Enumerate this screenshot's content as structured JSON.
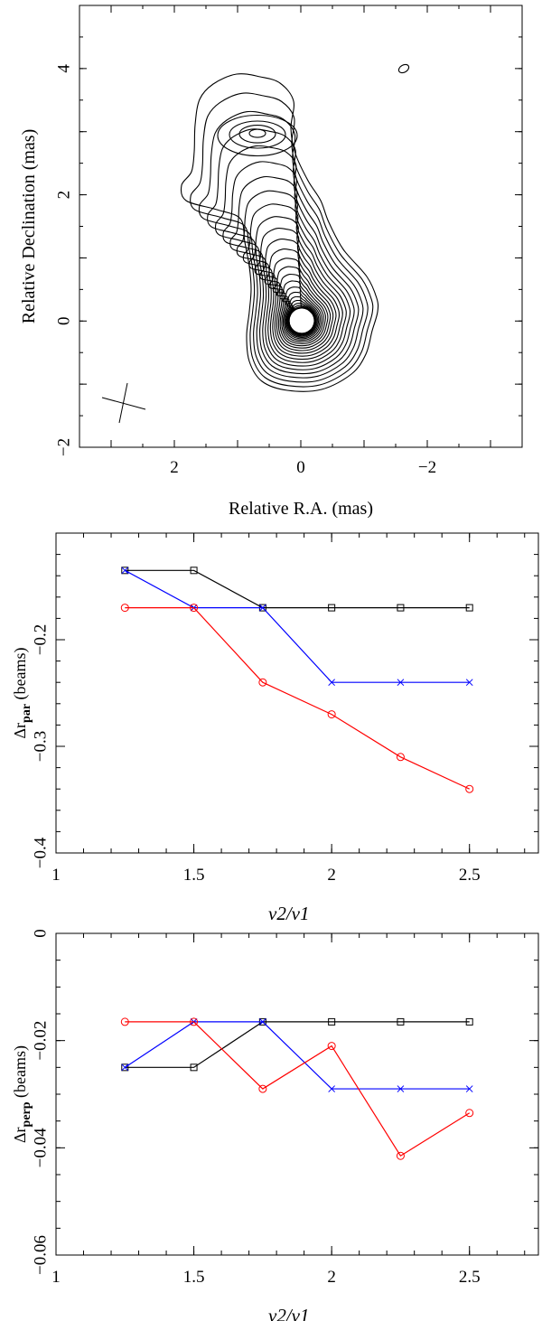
{
  "chart_data": [
    {
      "type": "contour",
      "title": "",
      "xlabel": "Relative R.A. (mas)",
      "ylabel": "Relative Declination (mas)",
      "xlim": [
        3.5,
        -3.5
      ],
      "ylim": [
        -2,
        5
      ],
      "xticks": [
        "2",
        "0",
        "−2"
      ],
      "yticks": [
        "−2",
        "0",
        "2",
        "4"
      ],
      "features": [
        "compact core at (0, 0)",
        "jet extending north to ~(0.8, 3.8)",
        "secondary peak near (0.7, 3.0)",
        "isolated component near (−1.6, 4.0)",
        "beam cross at lower-left"
      ]
    },
    {
      "type": "line",
      "xlabel": "ν2/ν1",
      "ylabel_main": "Δr",
      "ylabel_sub": "par",
      "ylabel_units": "(beams)",
      "xlim": [
        1,
        2.75
      ],
      "ylim": [
        -0.4,
        -0.1
      ],
      "xticks": [
        "1",
        "1.5",
        "2",
        "2.5"
      ],
      "yticks": [
        "−0.4",
        "−0.3",
        "−0.2"
      ],
      "x": [
        1.25,
        1.5,
        1.75,
        2.0,
        2.25,
        2.5
      ],
      "series": [
        {
          "name": "black",
          "color": "#000000",
          "marker": "square",
          "values": [
            -0.135,
            -0.135,
            -0.17,
            -0.17,
            -0.17,
            -0.17
          ]
        },
        {
          "name": "blue",
          "color": "#0000ff",
          "marker": "x",
          "values": [
            -0.135,
            -0.17,
            -0.17,
            -0.24,
            -0.24,
            -0.24
          ]
        },
        {
          "name": "red",
          "color": "#ff0000",
          "marker": "circle",
          "values": [
            -0.17,
            -0.17,
            -0.24,
            -0.27,
            -0.31,
            -0.34
          ]
        }
      ]
    },
    {
      "type": "line",
      "xlabel": "ν2/ν1",
      "ylabel_main": "Δr",
      "ylabel_sub": "perp",
      "ylabel_units": "(beams)",
      "xlim": [
        1,
        2.75
      ],
      "ylim": [
        -0.06,
        0
      ],
      "xticks": [
        "1",
        "1.5",
        "2",
        "2.5"
      ],
      "yticks": [
        "−0.06",
        "−0.04",
        "−0.02",
        "0"
      ],
      "x": [
        1.25,
        1.5,
        1.75,
        2.0,
        2.25,
        2.5
      ],
      "series": [
        {
          "name": "black",
          "color": "#000000",
          "marker": "square",
          "values": [
            -0.025,
            -0.025,
            -0.0165,
            -0.0165,
            -0.0165,
            -0.0165
          ]
        },
        {
          "name": "blue",
          "color": "#0000ff",
          "marker": "x",
          "values": [
            -0.025,
            -0.0165,
            -0.0165,
            -0.029,
            -0.029,
            -0.029
          ]
        },
        {
          "name": "red",
          "color": "#ff0000",
          "marker": "circle",
          "values": [
            -0.0165,
            -0.0165,
            -0.029,
            -0.021,
            -0.0415,
            -0.0335
          ]
        }
      ]
    }
  ]
}
